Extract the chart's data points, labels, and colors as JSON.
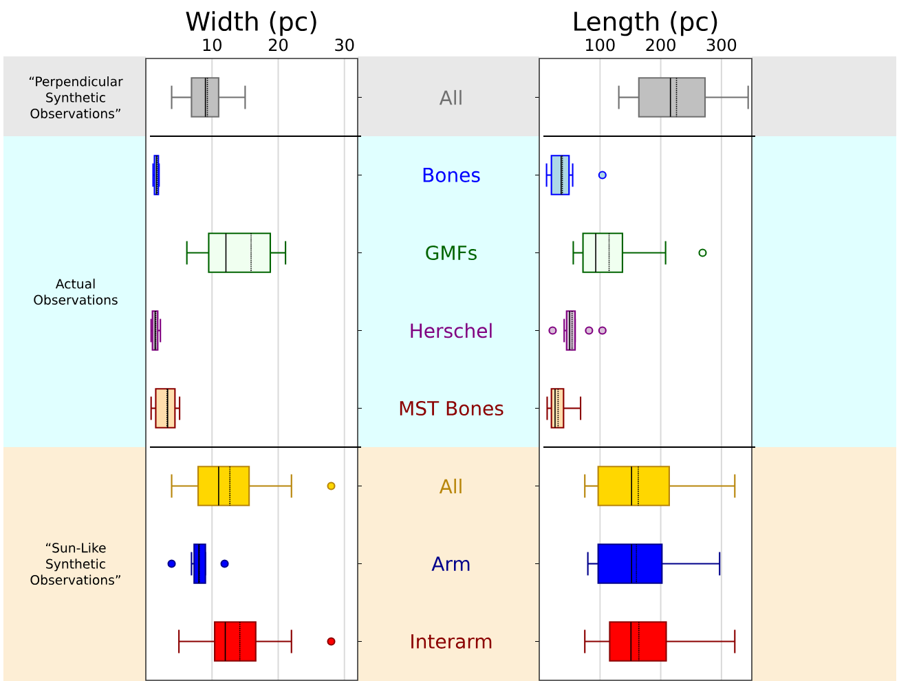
{
  "chart_data": [
    {
      "type": "box",
      "orientation": "horizontal",
      "xlabel": "Width (pc)",
      "categories": [
        "All",
        "Bones",
        "GMFs",
        "Herschel",
        "MST Bones",
        "All",
        "Arm",
        "Interarm"
      ],
      "colors": [
        "#707070",
        "#0000ff",
        "#006400",
        "#800080",
        "#8b0000",
        "#b8860b",
        "#00008b",
        "#8b0000"
      ],
      "boxes": [
        {
          "low": 3.9,
          "q1": 6.9,
          "median": 9.0,
          "q3": 11.0,
          "high": 15.0,
          "mean": 9.3
        },
        {
          "low": 1.1,
          "q1": 1.3,
          "median": 1.6,
          "q3": 1.9,
          "high": 2.0,
          "mean": 1.7
        },
        {
          "low": 6.2,
          "q1": 9.5,
          "median": 12.1,
          "q3": 18.8,
          "high": 21.1,
          "mean": 15.9
        },
        {
          "low": 0.8,
          "q1": 1.0,
          "median": 1.4,
          "q3": 1.8,
          "high": 2.2,
          "mean": 1.5
        },
        {
          "low": 0.8,
          "q1": 1.5,
          "median": 3.3,
          "q3": 4.4,
          "high": 5.1,
          "mean": 3.2
        },
        {
          "low": 3.9,
          "q1": 7.9,
          "median": 11.0,
          "q3": 15.6,
          "high": 22.0,
          "mean": 12.7,
          "outliers": [
            28.0
          ]
        },
        {
          "low": 6.9,
          "q1": 7.3,
          "median": 8.0,
          "q3": 9.0,
          "high": 9.0,
          "mean": 8.1,
          "outliers": [
            3.9,
            11.9
          ]
        },
        {
          "low": 5.0,
          "q1": 10.4,
          "median": 12.0,
          "q3": 16.6,
          "high": 22.0,
          "mean": 14.2,
          "outliers": [
            28.0
          ]
        }
      ],
      "xlim": [
        0,
        32
      ],
      "xticks": [
        10,
        20,
        30
      ],
      "grid": "x",
      "annotations": [
        "“Perpendicular Synthetic Observations”",
        "Actual Observations",
        "“Sun-Like Synthetic Observations”"
      ]
    },
    {
      "type": "box",
      "orientation": "horizontal",
      "xlabel": "Length (pc)",
      "colors": [
        "#707070",
        "#0000ff",
        "#006400",
        "#800080",
        "#8b0000",
        "#b8860b",
        "#00008b",
        "#8b0000"
      ],
      "boxes": [
        {
          "low": 131,
          "q1": 164,
          "median": 216,
          "q3": 273,
          "high": 344,
          "mean": 226
        },
        {
          "low": 12,
          "q1": 20,
          "median": 36,
          "q3": 49,
          "high": 55,
          "mean": 38,
          "outliers": [
            104
          ]
        },
        {
          "low": 56,
          "q1": 72,
          "median": 93,
          "q3": 137,
          "high": 208,
          "mean": 115,
          "outliers": [
            269
          ]
        },
        {
          "low": 41,
          "q1": 45,
          "median": 50,
          "q3": 59,
          "high": 59,
          "mean": 54,
          "outliers": [
            22,
            82,
            104
          ]
        },
        {
          "low": 13,
          "q1": 20,
          "median": 26,
          "q3": 40,
          "high": 68,
          "mean": 31
        },
        {
          "low": 75,
          "q1": 97,
          "median": 152,
          "q3": 214,
          "high": 322,
          "mean": 163
        },
        {
          "low": 80,
          "q1": 97,
          "median": 152,
          "q3": 202,
          "high": 297,
          "mean": 160
        },
        {
          "low": 75,
          "q1": 116,
          "median": 151,
          "q3": 209,
          "high": 322,
          "mean": 164
        }
      ],
      "xlim": [
        0,
        350
      ],
      "xticks": [
        100,
        200,
        300
      ],
      "grid": "x",
      "tick_labels": "x"
    }
  ]
}
